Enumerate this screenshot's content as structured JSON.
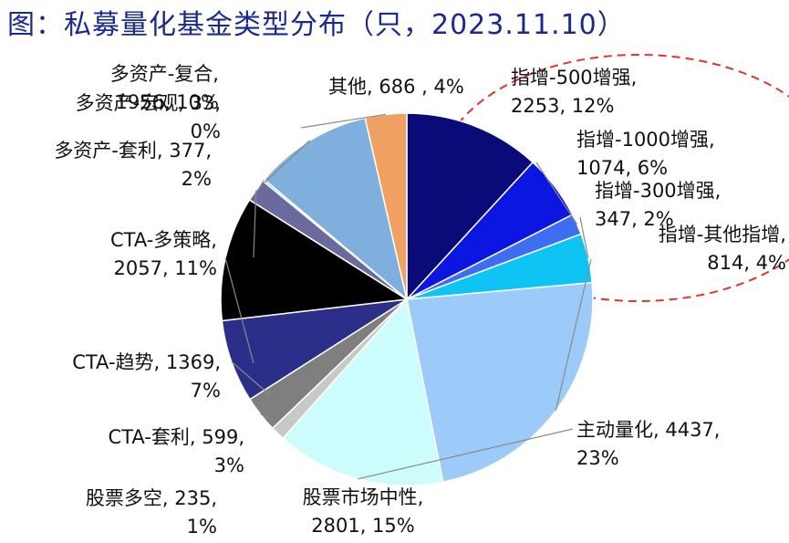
{
  "title": "图：私募量化基金类型分布（只，2023.11.10）",
  "chart_data": {
    "type": "pie",
    "title": "图：私募量化基金类型分布（只，2023.11.10）",
    "slices": [
      {
        "name": "指增-500增强",
        "value": 2253,
        "percent": "12%",
        "color": "#0a0a78"
      },
      {
        "name": "指增-1000增强",
        "value": 1074,
        "percent": "6%",
        "color": "#0b16e0"
      },
      {
        "name": "指增-300增强",
        "value": 347,
        "percent": "2%",
        "color": "#3d6ef2"
      },
      {
        "name": "指增-其他指增",
        "value": 814,
        "percent": "4%",
        "color": "#0ec4f4"
      },
      {
        "name": "主动量化",
        "value": 4437,
        "percent": "23%",
        "color": "#9dcbf9"
      },
      {
        "name": "股票市场中性",
        "value": 2801,
        "percent": "15%",
        "color": "#ccfcfc"
      },
      {
        "name": "股票多空",
        "value": 235,
        "percent": "1%",
        "color": "#c8c8c8"
      },
      {
        "name": "CTA-套利",
        "value": 599,
        "percent": "3%",
        "color": "#7f7f7f"
      },
      {
        "name": "CTA-趋势",
        "value": 1369,
        "percent": "7%",
        "color": "#2b2f8a"
      },
      {
        "name": "CTA-多策略",
        "value": 2057,
        "percent": "11%",
        "color": "#000000"
      },
      {
        "name": "多资产-套利",
        "value": 377,
        "percent": "2%",
        "color": "#6a6a9e"
      },
      {
        "name": "多资产-宏观",
        "value": 33,
        "percent": "0%",
        "color": "#2ad6f0"
      },
      {
        "name": "多资产-复合",
        "value": 1956,
        "percent": "10%",
        "color": "#7eafdd"
      },
      {
        "name": "其他",
        "value": 686,
        "percent": "4%",
        "color": "#f0a060"
      }
    ],
    "labels": [
      {
        "lines": [
          "其他, 686 , 4%"
        ]
      },
      {
        "lines": [
          "指增-500增强,",
          "2253, 12%"
        ]
      },
      {
        "lines": [
          "指增-1000增强,",
          "1074, 6%"
        ]
      },
      {
        "lines": [
          "指增-300增强,",
          "347, 2%"
        ]
      },
      {
        "lines": [
          "指增-其他指增,",
          "814, 4%"
        ]
      },
      {
        "lines": [
          "主动量化, 4437,",
          "23%"
        ]
      },
      {
        "lines": [
          "股票市场中性,",
          "2801, 15%"
        ]
      },
      {
        "lines": [
          "股票多空, 235,",
          "1%"
        ]
      },
      {
        "lines": [
          "CTA-套利, 599,",
          "3%"
        ]
      },
      {
        "lines": [
          "CTA-趋势, 1369,",
          "7%"
        ]
      },
      {
        "lines": [
          "CTA-多策略,",
          "2057, 11%"
        ]
      },
      {
        "lines": [
          "多资产-套利, 377,",
          "2%"
        ]
      },
      {
        "lines": [
          "多资产-宏观, 33,",
          "0%"
        ]
      },
      {
        "lines": [
          "多资产-复合,",
          "1956, 10%"
        ]
      }
    ],
    "annotation": "dashed-red-ellipse-around-index-enhanced-labels"
  }
}
